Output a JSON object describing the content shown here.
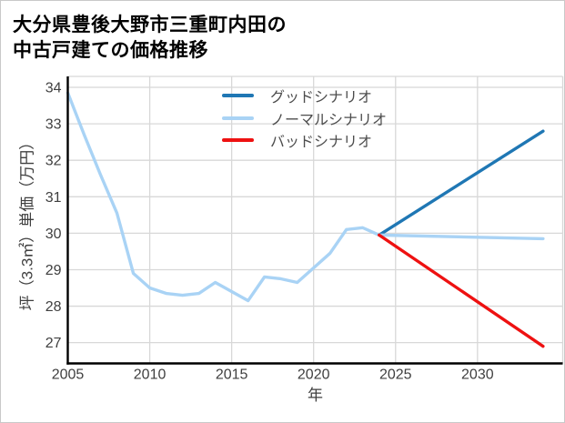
{
  "figure": {
    "title_lines": [
      "大分県豊後大野市三重町内田の",
      "中古戸建ての価格推移"
    ]
  },
  "legend": {
    "items": [
      {
        "label": "グッドシナリオ",
        "color": "#1f77b4"
      },
      {
        "label": "ノーマルシナリオ",
        "color": "#a9d3f5"
      },
      {
        "label": "バッドシナリオ",
        "color": "#ee1111"
      }
    ]
  },
  "axes": {
    "xlabel": "年",
    "ylabel": "坪（3.3㎡）単価（万円）"
  },
  "colors": {
    "grid": "#d8d8d8",
    "spine": "#000000",
    "tick_text": "#3f3f3f",
    "good": "#1f77b4",
    "normal": "#a9d3f5",
    "bad": "#ee1111"
  },
  "chart_data": {
    "type": "line",
    "title": "大分県豊後大野市三重町内田の中古戸建ての価格推移",
    "xlabel": "年",
    "ylabel": "坪（3.3㎡）単価（万円）",
    "x_ticks": [
      2005,
      2010,
      2015,
      2020,
      2025,
      2030
    ],
    "y_ticks": [
      27,
      28,
      29,
      30,
      31,
      32,
      33,
      34
    ],
    "xlim": [
      2005,
      2035.2
    ],
    "ylim": [
      26.43,
      34.3
    ],
    "grid": true,
    "legend_position": "upper center",
    "series": [
      {
        "name": "historical",
        "in_legend": false,
        "color": "#a9d3f5",
        "x": [
          2005,
          2006,
          2007,
          2008,
          2009,
          2010,
          2011,
          2012,
          2013,
          2014,
          2015,
          2016,
          2017,
          2018,
          2019,
          2020,
          2021,
          2022,
          2023,
          2024
        ],
        "y": [
          33.85,
          32.7,
          31.6,
          30.55,
          28.9,
          28.5,
          28.35,
          28.3,
          28.35,
          28.65,
          28.4,
          28.15,
          28.8,
          28.75,
          28.65,
          29.05,
          29.45,
          30.1,
          30.15,
          29.95
        ]
      },
      {
        "name": "グッドシナリオ",
        "in_legend": true,
        "color": "#1f77b4",
        "x": [
          2024,
          2034
        ],
        "y": [
          29.95,
          32.8
        ]
      },
      {
        "name": "ノーマルシナリオ",
        "in_legend": true,
        "color": "#a9d3f5",
        "x": [
          2024,
          2034
        ],
        "y": [
          29.95,
          29.85
        ]
      },
      {
        "name": "バッドシナリオ",
        "in_legend": true,
        "color": "#ee1111",
        "x": [
          2024,
          2034
        ],
        "y": [
          29.95,
          26.9
        ]
      }
    ]
  }
}
